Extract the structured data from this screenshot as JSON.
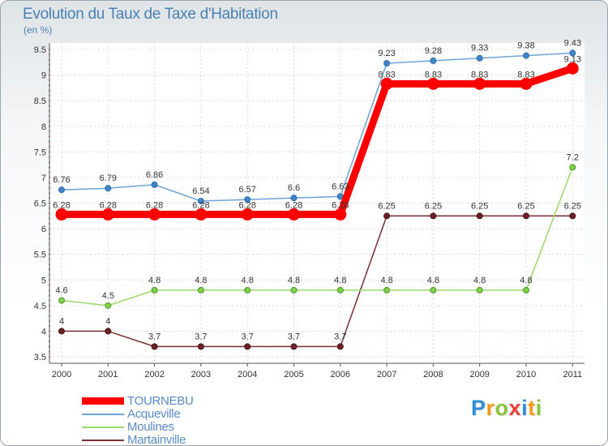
{
  "header": {
    "title": "Evolution du Taux de Taxe d'Habitation",
    "subtitle": "(en %)"
  },
  "logo": {
    "letters": [
      "P",
      "r",
      "o",
      "x",
      "i",
      "t",
      "i"
    ]
  },
  "chart_data": {
    "type": "line",
    "title": "Evolution du Taux de Taxe d'Habitation",
    "ylabel": "(en %)",
    "xlabel": "",
    "categories": [
      "2000",
      "2001",
      "2002",
      "2003",
      "2004",
      "2005",
      "2006",
      "2007",
      "2008",
      "2009",
      "2010",
      "2011"
    ],
    "ylim": [
      3.5,
      9.5
    ],
    "yticks": [
      "3.5",
      "4",
      "4.5",
      "5",
      "5.5",
      "6",
      "6.5",
      "7",
      "7.5",
      "8",
      "8.5",
      "9",
      "9.5"
    ],
    "grid": true,
    "legend_position": "bottom-left",
    "series": [
      {
        "name": "Martainville",
        "color": "#7a2f32",
        "values": [
          4,
          4,
          3.7,
          3.7,
          3.7,
          3.7,
          3.7,
          6.25,
          6.25,
          6.25,
          6.25,
          6.25
        ],
        "labels": [
          "4",
          "4",
          "3.7",
          "3.7",
          "3.7",
          "3.7",
          "3.7",
          "6.25",
          "6.25",
          "6.25",
          "6.25",
          "6.25"
        ]
      },
      {
        "name": "Moulines",
        "color": "#9cd86c",
        "values": [
          4.6,
          4.5,
          4.8,
          4.8,
          4.8,
          4.8,
          4.8,
          4.8,
          4.8,
          4.8,
          4.8,
          7.2
        ],
        "labels": [
          "4.6",
          "4.5",
          "4.8",
          "4.8",
          "4.8",
          "4.8",
          "4.8",
          "4.8",
          "4.8",
          "4.8",
          "4.8",
          "7.2"
        ]
      },
      {
        "name": "Acqueville",
        "color": "#6ea4d4",
        "values": [
          6.76,
          6.79,
          6.86,
          6.54,
          6.57,
          6.6,
          6.63,
          9.23,
          9.28,
          9.33,
          9.38,
          9.43
        ],
        "labels": [
          "6.76",
          "6.79",
          "6.86",
          "6.54",
          "6.57",
          "6.6",
          "6.63",
          "9.23",
          "9.28",
          "9.33",
          "9.38",
          "9.43"
        ]
      },
      {
        "name": "TOURNEBU",
        "color": "#ff0000",
        "values": [
          6.28,
          6.28,
          6.28,
          6.28,
          6.28,
          6.28,
          6.28,
          8.83,
          8.83,
          8.83,
          8.83,
          9.13
        ],
        "labels": [
          "6.28",
          "6.28",
          "6.28",
          "6.28",
          "6.28",
          "6.28",
          "6.28",
          "8.83",
          "8.83",
          "8.83",
          "8.83",
          "9.13"
        ]
      }
    ]
  }
}
